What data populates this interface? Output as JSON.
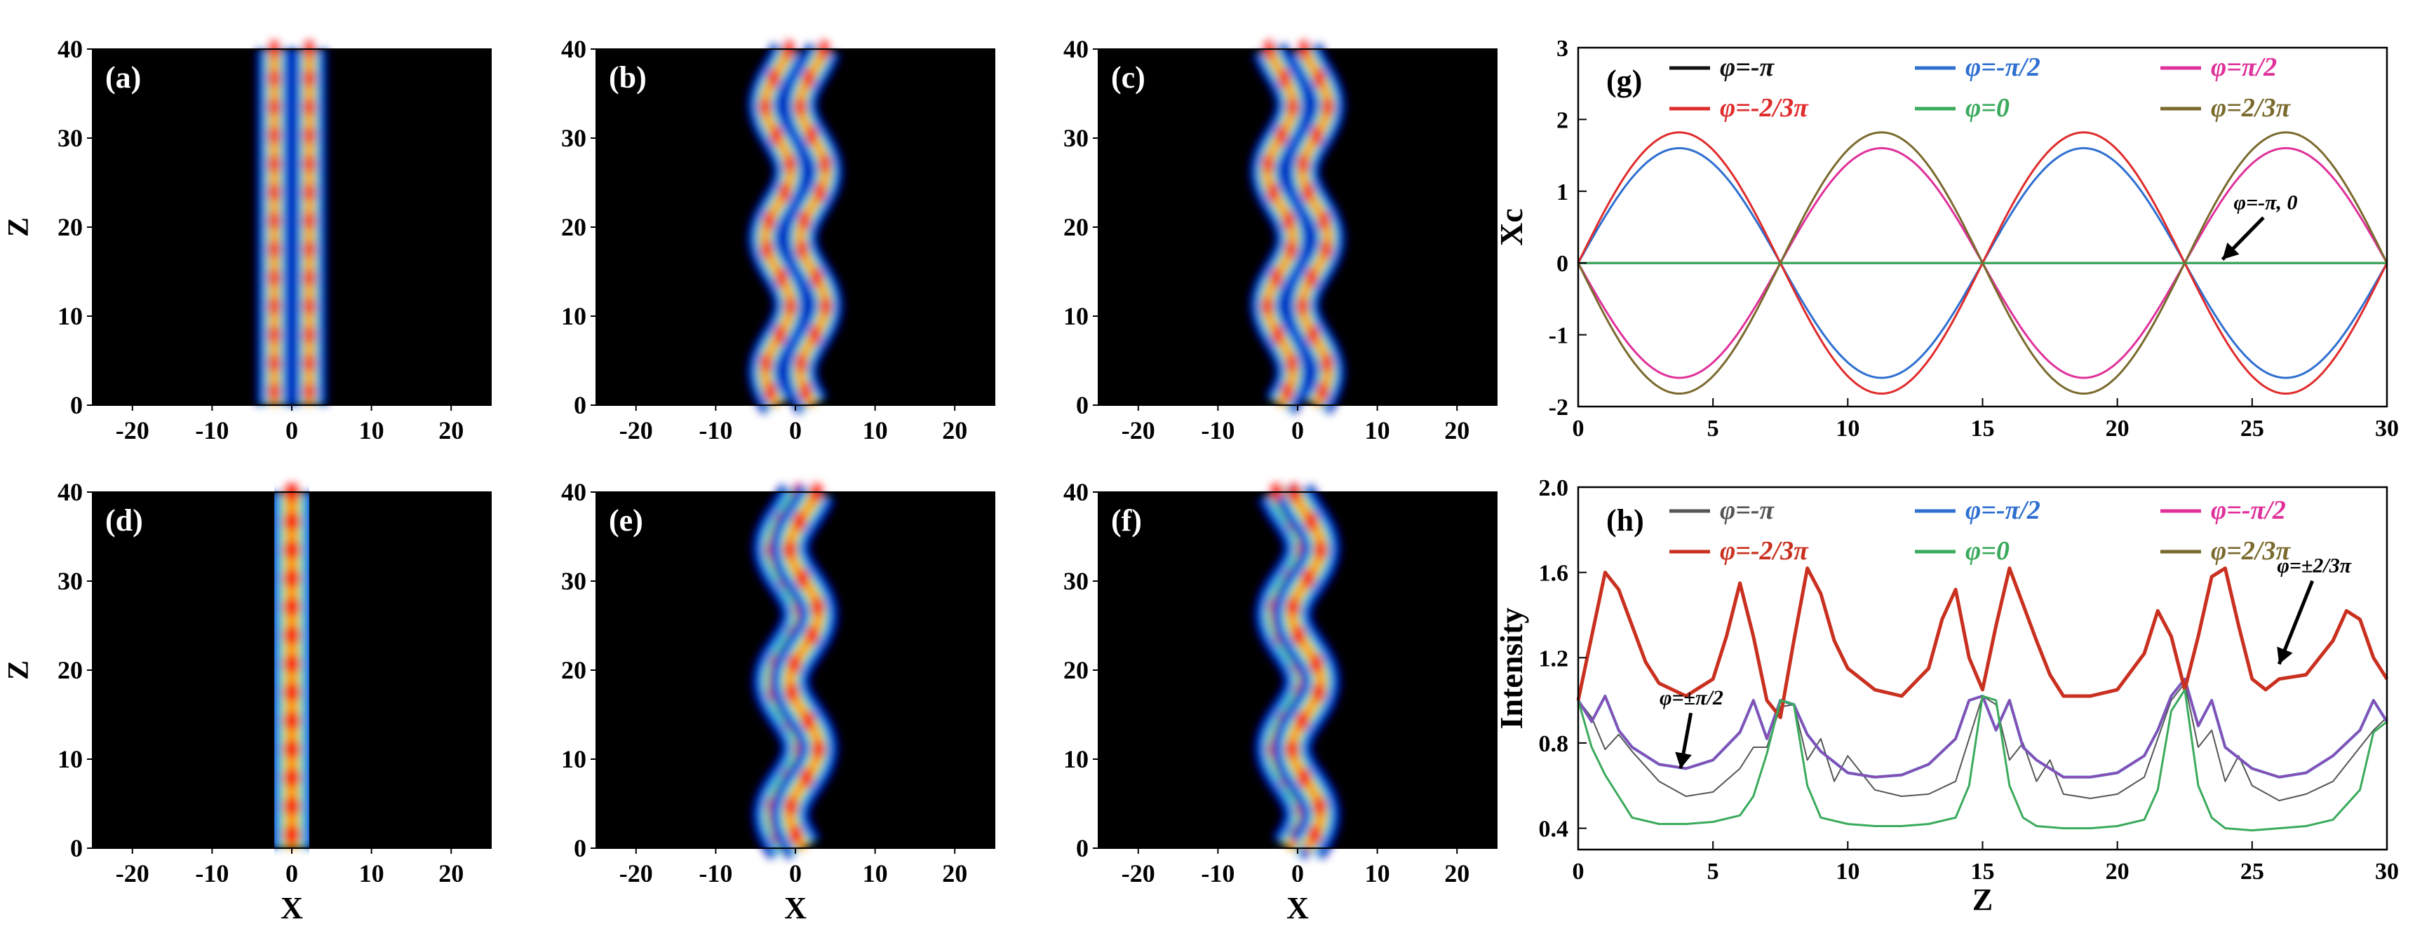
{
  "chart_data": [
    {
      "id": "a",
      "type": "heatmap",
      "panel_label": "(a)",
      "xlabel": "",
      "ylabel": "Z",
      "xlim": [
        -25,
        25
      ],
      "ylim": [
        0,
        40
      ],
      "xticks": [
        -20,
        -10,
        0,
        10,
        20
      ],
      "yticks": [
        0,
        10,
        20,
        30,
        40
      ],
      "colormap": "jet",
      "beams": [
        {
          "center": -2.2,
          "amplitude": 0.0,
          "period": 10,
          "phase": 0,
          "width": 1.4
        },
        {
          "center": 2.2,
          "amplitude": 0.0,
          "period": 10,
          "phase": 0,
          "width": 1.4
        }
      ]
    },
    {
      "id": "b",
      "type": "heatmap",
      "panel_label": "(b)",
      "xlabel": "",
      "ylabel": "",
      "xlim": [
        -25,
        25
      ],
      "ylim": [
        0,
        40
      ],
      "xticks": [
        -20,
        -10,
        0,
        10,
        20
      ],
      "yticks": [
        0,
        10,
        20,
        30,
        40
      ],
      "colormap": "jet",
      "beams": [
        {
          "center": -2.2,
          "amplitude": 1.6,
          "period": 15,
          "phase": 3.1416,
          "width": 1.4
        },
        {
          "center": 2.2,
          "amplitude": 1.6,
          "period": 15,
          "phase": 3.1416,
          "width": 1.4
        }
      ]
    },
    {
      "id": "c",
      "type": "heatmap",
      "panel_label": "(c)",
      "xlabel": "",
      "ylabel": "",
      "xlim": [
        -25,
        25
      ],
      "ylim": [
        0,
        40
      ],
      "xticks": [
        -20,
        -10,
        0,
        10,
        20
      ],
      "yticks": [
        0,
        10,
        20,
        30,
        40
      ],
      "colormap": "jet",
      "beams": [
        {
          "center": -2.2,
          "amplitude": 1.6,
          "period": 15,
          "phase": 0,
          "width": 1.4
        },
        {
          "center": 2.2,
          "amplitude": 1.6,
          "period": 15,
          "phase": 0,
          "width": 1.4
        }
      ]
    },
    {
      "id": "d",
      "type": "heatmap",
      "panel_label": "(d)",
      "xlabel": "X",
      "ylabel": "Z",
      "xlim": [
        -25,
        25
      ],
      "ylim": [
        0,
        40
      ],
      "xticks": [
        -20,
        -10,
        0,
        10,
        20
      ],
      "yticks": [
        0,
        10,
        20,
        30,
        40
      ],
      "colormap": "jet",
      "beams": [
        {
          "center": 0,
          "amplitude": 0.0,
          "period": 10,
          "phase": 0,
          "width": 2.0
        }
      ]
    },
    {
      "id": "e",
      "type": "heatmap",
      "panel_label": "(e)",
      "xlabel": "X",
      "ylabel": "",
      "xlim": [
        -25,
        25
      ],
      "ylim": [
        0,
        40
      ],
      "xticks": [
        -20,
        -10,
        0,
        10,
        20
      ],
      "yticks": [
        0,
        10,
        20,
        30,
        40
      ],
      "colormap": "jet",
      "beams": [
        {
          "center": -1.1,
          "amplitude": 1.8,
          "period": 15,
          "phase": 3.1416,
          "width": 1.6
        },
        {
          "center": 1.1,
          "amplitude": 1.8,
          "period": 15,
          "phase": 3.1416,
          "width": 1.6
        }
      ]
    },
    {
      "id": "f",
      "type": "heatmap",
      "panel_label": "(f)",
      "xlabel": "X",
      "ylabel": "",
      "xlim": [
        -25,
        25
      ],
      "ylim": [
        0,
        40
      ],
      "xticks": [
        -20,
        -10,
        0,
        10,
        20
      ],
      "yticks": [
        0,
        10,
        20,
        30,
        40
      ],
      "colormap": "jet",
      "beams": [
        {
          "center": -1.1,
          "amplitude": 1.8,
          "period": 15,
          "phase": 0,
          "width": 1.6
        },
        {
          "center": 1.1,
          "amplitude": 1.8,
          "period": 15,
          "phase": 0,
          "width": 1.6
        }
      ]
    },
    {
      "id": "g",
      "type": "line",
      "panel_label": "(g)",
      "xlabel": "",
      "ylabel": "Xc",
      "xlim": [
        0,
        30
      ],
      "ylim": [
        -2,
        3
      ],
      "xticks": [
        0,
        5,
        10,
        15,
        20,
        25,
        30
      ],
      "yticks": [
        -2,
        -1,
        0,
        1,
        2,
        3
      ],
      "series": [
        {
          "name": "φ=-π",
          "color": "#111111",
          "model": "sine",
          "amplitude": 0,
          "period": 15,
          "sign": 1
        },
        {
          "name": "φ=-π/2",
          "color": "#2e6fd0",
          "model": "sine",
          "amplitude": 1.6,
          "period": 15,
          "sign": 1
        },
        {
          "name": "φ=π/2",
          "color": "#e0309a",
          "model": "sine",
          "amplitude": 1.6,
          "period": 15,
          "sign": -1
        },
        {
          "name": "φ=-2/3π",
          "color": "#e02b2b",
          "model": "sine",
          "amplitude": 1.82,
          "period": 15,
          "sign": 1
        },
        {
          "name": "φ=0",
          "color": "#3aaa5c",
          "model": "sine",
          "amplitude": 0,
          "period": 15,
          "sign": 1
        },
        {
          "name": "φ=2/3π",
          "color": "#7a6a2e",
          "model": "sine",
          "amplitude": 1.82,
          "period": 15,
          "sign": -1
        }
      ],
      "annotations": [
        {
          "text": "φ=-π, 0",
          "x": 25.5,
          "y": 0.75,
          "arrow_to": [
            23.9,
            0.05
          ]
        }
      ]
    },
    {
      "id": "h",
      "type": "line",
      "panel_label": "(h)",
      "xlabel": "Z",
      "ylabel": "Intensity",
      "xlim": [
        0,
        30
      ],
      "ylim": [
        0.3,
        2.0
      ],
      "xticks": [
        0,
        5,
        10,
        15,
        20,
        25,
        30
      ],
      "yticks": [
        0.4,
        0.8,
        1.2,
        1.6,
        2.0
      ],
      "series": [
        {
          "name": "φ=-π",
          "color": "#555555",
          "width": 2,
          "x": [
            0,
            0.5,
            1,
            1.5,
            2,
            3,
            4,
            5,
            6,
            6.5,
            7,
            7.5,
            8,
            8.5,
            9,
            9.5,
            10,
            11,
            12,
            13,
            14,
            14.5,
            15,
            15.5,
            16,
            16.5,
            17,
            17.5,
            18,
            19,
            20,
            21,
            21.5,
            22,
            22.5,
            23,
            23.5,
            24,
            24.5,
            25,
            26,
            27,
            28,
            29,
            29.5,
            30
          ],
          "y": [
            1.0,
            0.92,
            0.77,
            0.84,
            0.76,
            0.62,
            0.55,
            0.57,
            0.68,
            0.78,
            0.78,
            0.97,
            0.98,
            0.72,
            0.82,
            0.62,
            0.74,
            0.58,
            0.55,
            0.56,
            0.62,
            0.82,
            1.02,
            0.98,
            0.72,
            0.8,
            0.62,
            0.72,
            0.56,
            0.54,
            0.56,
            0.64,
            0.82,
            1.0,
            1.08,
            0.78,
            0.86,
            0.62,
            0.74,
            0.6,
            0.53,
            0.56,
            0.62,
            0.78,
            0.86,
            0.92
          ]
        },
        {
          "name": "φ=-π/2",
          "color": "#2e6fd0",
          "width": 4,
          "x": [
            0,
            0.5,
            1,
            1.5,
            2,
            3,
            4,
            5,
            6,
            6.5,
            7,
            7.5,
            8,
            8.5,
            9,
            10,
            11,
            12,
            13,
            14,
            14.5,
            15,
            15.5,
            16,
            16.5,
            17,
            18,
            19,
            20,
            21,
            21.5,
            22,
            22.5,
            23,
            23.5,
            24,
            25,
            26,
            27,
            28,
            29,
            29.5,
            30
          ],
          "y": [
            1.0,
            0.9,
            1.02,
            0.86,
            0.78,
            0.7,
            0.68,
            0.72,
            0.85,
            1.0,
            0.82,
            1.0,
            0.98,
            0.84,
            0.76,
            0.66,
            0.64,
            0.65,
            0.7,
            0.82,
            1.0,
            1.02,
            0.86,
            1.0,
            0.78,
            0.72,
            0.64,
            0.64,
            0.66,
            0.74,
            0.86,
            1.02,
            1.1,
            0.88,
            1.0,
            0.78,
            0.68,
            0.64,
            0.66,
            0.74,
            0.86,
            1.0,
            0.9
          ]
        },
        {
          "name": "φ=-π/2",
          "color": "#e0309a",
          "width": 3,
          "line_alpha": 0.55,
          "x": [
            0,
            0.5,
            1,
            1.5,
            2,
            3,
            4,
            5,
            6,
            6.5,
            7,
            7.5,
            8,
            8.5,
            9,
            10,
            11,
            12,
            13,
            14,
            14.5,
            15,
            15.5,
            16,
            16.5,
            17,
            18,
            19,
            20,
            21,
            21.5,
            22,
            22.5,
            23,
            23.5,
            24,
            25,
            26,
            27,
            28,
            29,
            29.5,
            30
          ],
          "y": [
            1.0,
            0.9,
            1.02,
            0.86,
            0.78,
            0.7,
            0.68,
            0.72,
            0.85,
            1.0,
            0.82,
            1.0,
            0.98,
            0.84,
            0.76,
            0.66,
            0.64,
            0.65,
            0.7,
            0.82,
            1.0,
            1.02,
            0.86,
            1.0,
            0.78,
            0.72,
            0.64,
            0.64,
            0.66,
            0.74,
            0.86,
            1.02,
            1.1,
            0.88,
            1.0,
            0.78,
            0.68,
            0.64,
            0.66,
            0.74,
            0.86,
            1.0,
            0.9
          ]
        },
        {
          "name": "φ=-2/3π",
          "color": "#c9301f",
          "width": 5,
          "x": [
            0,
            0.5,
            1,
            1.5,
            2,
            2.5,
            3,
            4,
            5,
            5.5,
            6,
            6.5,
            7,
            7.5,
            8,
            8.5,
            9,
            9.5,
            10,
            11,
            12,
            13,
            13.5,
            14,
            14.5,
            15,
            15.5,
            16,
            16.5,
            17,
            17.5,
            18,
            19,
            20,
            21,
            21.5,
            22,
            22.5,
            23,
            23.5,
            24,
            24.5,
            25,
            25.5,
            26,
            27,
            28,
            28.5,
            29,
            29.5,
            30
          ],
          "y": [
            1.0,
            1.3,
            1.6,
            1.52,
            1.35,
            1.18,
            1.08,
            1.02,
            1.1,
            1.3,
            1.55,
            1.3,
            1.0,
            0.92,
            1.28,
            1.62,
            1.5,
            1.28,
            1.15,
            1.05,
            1.02,
            1.15,
            1.38,
            1.52,
            1.2,
            1.05,
            1.35,
            1.62,
            1.45,
            1.28,
            1.12,
            1.02,
            1.02,
            1.05,
            1.22,
            1.42,
            1.3,
            1.05,
            1.3,
            1.58,
            1.62,
            1.35,
            1.1,
            1.05,
            1.1,
            1.12,
            1.28,
            1.42,
            1.38,
            1.2,
            1.1
          ]
        },
        {
          "name": "φ=0",
          "color": "#3aaa5c",
          "width": 3,
          "x": [
            0,
            0.5,
            1,
            1.5,
            2,
            3,
            4,
            5,
            6,
            6.5,
            7,
            7.5,
            8,
            8.5,
            9,
            10,
            11,
            12,
            13,
            14,
            14.5,
            15,
            15.5,
            16,
            16.5,
            17,
            18,
            19,
            20,
            21,
            21.5,
            22,
            22.5,
            23,
            23.5,
            24,
            25,
            26,
            27,
            28,
            29,
            29.5,
            30
          ],
          "y": [
            1.0,
            0.78,
            0.65,
            0.55,
            0.45,
            0.42,
            0.42,
            0.43,
            0.46,
            0.55,
            0.75,
            1.0,
            0.98,
            0.6,
            0.45,
            0.42,
            0.41,
            0.41,
            0.42,
            0.45,
            0.6,
            1.02,
            1.0,
            0.6,
            0.45,
            0.41,
            0.4,
            0.4,
            0.41,
            0.44,
            0.58,
            0.95,
            1.05,
            0.6,
            0.45,
            0.4,
            0.39,
            0.4,
            0.41,
            0.44,
            0.58,
            0.85,
            0.9
          ]
        },
        {
          "name": "φ=2/3π",
          "color": "#7a6a2e",
          "width": 0,
          "legend_only": true,
          "x": [],
          "y": []
        }
      ],
      "annotations": [
        {
          "text": "φ=±2/3π",
          "x": 27.3,
          "y": 1.6,
          "arrow_to": [
            26.0,
            1.17
          ]
        },
        {
          "text": "φ=±π/2",
          "x": 4.2,
          "y": 0.98,
          "arrow_to": [
            3.8,
            0.68
          ]
        }
      ]
    }
  ]
}
